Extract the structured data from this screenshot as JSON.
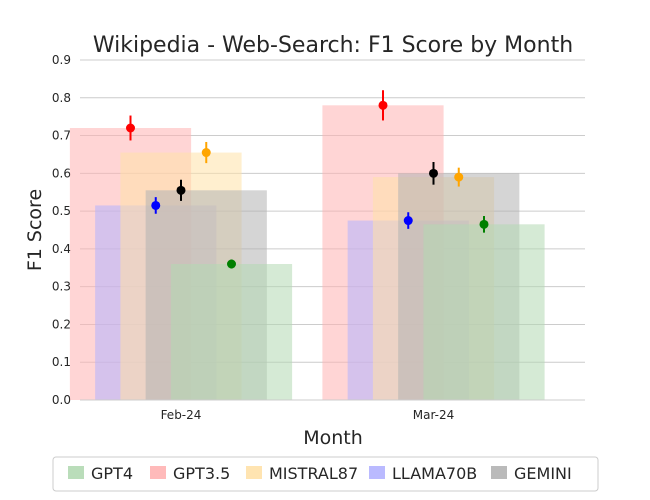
{
  "chart_data": {
    "type": "bar",
    "title": "Wikipedia - Web-Search: F1 Score by Month",
    "xlabel": "Month",
    "ylabel": "F1 Score",
    "categories": [
      "Feb-24",
      "Mar-24"
    ],
    "ylim": [
      0,
      0.9
    ],
    "yticks": [
      "0.0",
      "0.1",
      "0.2",
      "0.3",
      "0.4",
      "0.5",
      "0.6",
      "0.7",
      "0.8",
      "0.9"
    ],
    "grid": "horizontal",
    "legend_position": "bottom",
    "series": [
      {
        "name": "GPT4",
        "bar_color": "#b2d9b2",
        "point_color": "#008000",
        "values": [
          0.36,
          0.465
        ],
        "points": [
          0.36,
          0.465
        ],
        "errors": [
          0.012,
          0.022
        ]
      },
      {
        "name": "GPT3.5",
        "bar_color": "#ffb3b3",
        "point_color": "#ff0000",
        "values": [
          0.72,
          0.78
        ],
        "points": [
          0.72,
          0.78
        ],
        "errors": [
          0.033,
          0.04
        ]
      },
      {
        "name": "MISTRAL87",
        "bar_color": "#ffe1a8",
        "point_color": "#ffa500",
        "values": [
          0.655,
          0.59
        ],
        "points": [
          0.655,
          0.59
        ],
        "errors": [
          0.028,
          0.025
        ]
      },
      {
        "name": "LLAMA70B",
        "bar_color": "#b3b3ff",
        "point_color": "#0000ff",
        "values": [
          0.515,
          0.475
        ],
        "points": [
          0.515,
          0.475
        ],
        "errors": [
          0.022,
          0.022
        ]
      },
      {
        "name": "GEMINI",
        "bar_color": "#b3b3b3",
        "point_color": "#000000",
        "values": [
          0.555,
          0.6
        ],
        "points": [
          0.555,
          0.6
        ],
        "errors": [
          0.028,
          0.03
        ]
      }
    ],
    "draw_order": [
      "GPT3.5",
      "LLAMA70B",
      "MISTRAL87",
      "GEMINI",
      "GPT4"
    ],
    "bar_opacity": 0.55
  }
}
